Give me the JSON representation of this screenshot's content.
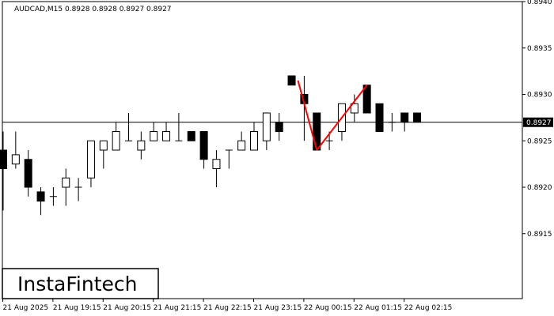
{
  "header": {
    "symbol_label": "AUDCAD,M15  0.8928 0.8928 0.8927 0.8927"
  },
  "logo": {
    "text": "InstaFintech"
  },
  "chart_data": {
    "type": "candlestick",
    "symbol": "AUDCAD",
    "timeframe": "M15",
    "ohlc_header": {
      "open": 0.8928,
      "high": 0.8928,
      "low": 0.8927,
      "close": 0.8927
    },
    "current_price": 0.8927,
    "current_price_label": "0.8927",
    "ylim": [
      0.8908,
      0.894
    ],
    "y_ticks": [
      {
        "value": 0.894,
        "label": "0.8940"
      },
      {
        "value": 0.8935,
        "label": "0.8935"
      },
      {
        "value": 0.893,
        "label": "0.8930"
      },
      {
        "value": 0.8925,
        "label": "0.8925"
      },
      {
        "value": 0.892,
        "label": "0.8920"
      },
      {
        "value": 0.8915,
        "label": "0.8915"
      }
    ],
    "x_ticks": [
      {
        "index": 0,
        "label": "21 Aug 2025"
      },
      {
        "index": 4,
        "label": "21 Aug 19:15"
      },
      {
        "index": 8,
        "label": "21 Aug 20:15"
      },
      {
        "index": 12,
        "label": "21 Aug 21:15"
      },
      {
        "index": 16,
        "label": "21 Aug 22:15"
      },
      {
        "index": 20,
        "label": "21 Aug 23:15"
      },
      {
        "index": 24,
        "label": "22 Aug 00:15"
      },
      {
        "index": 28,
        "label": "22 Aug 01:15"
      },
      {
        "index": 32,
        "label": "22 Aug 02:15"
      }
    ],
    "candles": [
      {
        "o": 0.8924,
        "h": 0.8926,
        "l": 0.89175,
        "c": 0.8922
      },
      {
        "o": 0.89225,
        "h": 0.8926,
        "l": 0.8922,
        "c": 0.89235
      },
      {
        "o": 0.8923,
        "h": 0.8924,
        "l": 0.8919,
        "c": 0.892
      },
      {
        "o": 0.89195,
        "h": 0.892,
        "l": 0.8917,
        "c": 0.89185
      },
      {
        "o": 0.8919,
        "h": 0.892,
        "l": 0.8918,
        "c": 0.8919
      },
      {
        "o": 0.892,
        "h": 0.8922,
        "l": 0.8918,
        "c": 0.8921
      },
      {
        "o": 0.892,
        "h": 0.8921,
        "l": 0.89185,
        "c": 0.892
      },
      {
        "o": 0.8921,
        "h": 0.8925,
        "l": 0.892,
        "c": 0.8925
      },
      {
        "o": 0.8924,
        "h": 0.8925,
        "l": 0.8922,
        "c": 0.8925
      },
      {
        "o": 0.8924,
        "h": 0.8927,
        "l": 0.8924,
        "c": 0.8926
      },
      {
        "o": 0.8925,
        "h": 0.8928,
        "l": 0.8925,
        "c": 0.8925
      },
      {
        "o": 0.8924,
        "h": 0.8926,
        "l": 0.8923,
        "c": 0.8925
      },
      {
        "o": 0.8925,
        "h": 0.8927,
        "l": 0.8925,
        "c": 0.8926
      },
      {
        "o": 0.8925,
        "h": 0.8927,
        "l": 0.8925,
        "c": 0.8926
      },
      {
        "o": 0.8925,
        "h": 0.8928,
        "l": 0.8925,
        "c": 0.8925
      },
      {
        "o": 0.8926,
        "h": 0.8926,
        "l": 0.8925,
        "c": 0.8925
      },
      {
        "o": 0.8926,
        "h": 0.8926,
        "l": 0.8922,
        "c": 0.8923
      },
      {
        "o": 0.8922,
        "h": 0.8924,
        "l": 0.892,
        "c": 0.8923
      },
      {
        "o": 0.8924,
        "h": 0.8924,
        "l": 0.8922,
        "c": 0.8924
      },
      {
        "o": 0.8924,
        "h": 0.8926,
        "l": 0.8924,
        "c": 0.8925
      },
      {
        "o": 0.8924,
        "h": 0.8927,
        "l": 0.8924,
        "c": 0.8926
      },
      {
        "o": 0.8925,
        "h": 0.8928,
        "l": 0.8924,
        "c": 0.8928
      },
      {
        "o": 0.8927,
        "h": 0.8928,
        "l": 0.8925,
        "c": 0.8926
      },
      {
        "o": 0.8932,
        "h": 0.8932,
        "l": 0.8931,
        "c": 0.8931
      },
      {
        "o": 0.893,
        "h": 0.8932,
        "l": 0.8925,
        "c": 0.8929
      },
      {
        "o": 0.8928,
        "h": 0.8928,
        "l": 0.8924,
        "c": 0.8924
      },
      {
        "o": 0.8925,
        "h": 0.8926,
        "l": 0.8924,
        "c": 0.8925
      },
      {
        "o": 0.8926,
        "h": 0.8929,
        "l": 0.8925,
        "c": 0.8929
      },
      {
        "o": 0.8928,
        "h": 0.893,
        "l": 0.8927,
        "c": 0.8929
      },
      {
        "o": 0.8931,
        "h": 0.8931,
        "l": 0.8928,
        "c": 0.8928
      },
      {
        "o": 0.8929,
        "h": 0.8929,
        "l": 0.8926,
        "c": 0.8926
      },
      {
        "o": 0.8927,
        "h": 0.8928,
        "l": 0.8926,
        "c": 0.8927
      },
      {
        "o": 0.8928,
        "h": 0.8928,
        "l": 0.8926,
        "c": 0.8927
      },
      {
        "o": 0.8928,
        "h": 0.8928,
        "l": 0.8927,
        "c": 0.8927
      }
    ],
    "pattern_line": {
      "color": "#ff0000",
      "points": [
        {
          "index": 23.5,
          "price": 0.89315
        },
        {
          "index": 25,
          "price": 0.8924
        },
        {
          "index": 29,
          "price": 0.8931
        }
      ]
    },
    "colors": {
      "bull_body": "#ffffff",
      "bear_body": "#000000",
      "wick": "#000000",
      "price_line": "#000000",
      "price_tag_bg": "#000000",
      "pattern": "#ff0000"
    }
  }
}
